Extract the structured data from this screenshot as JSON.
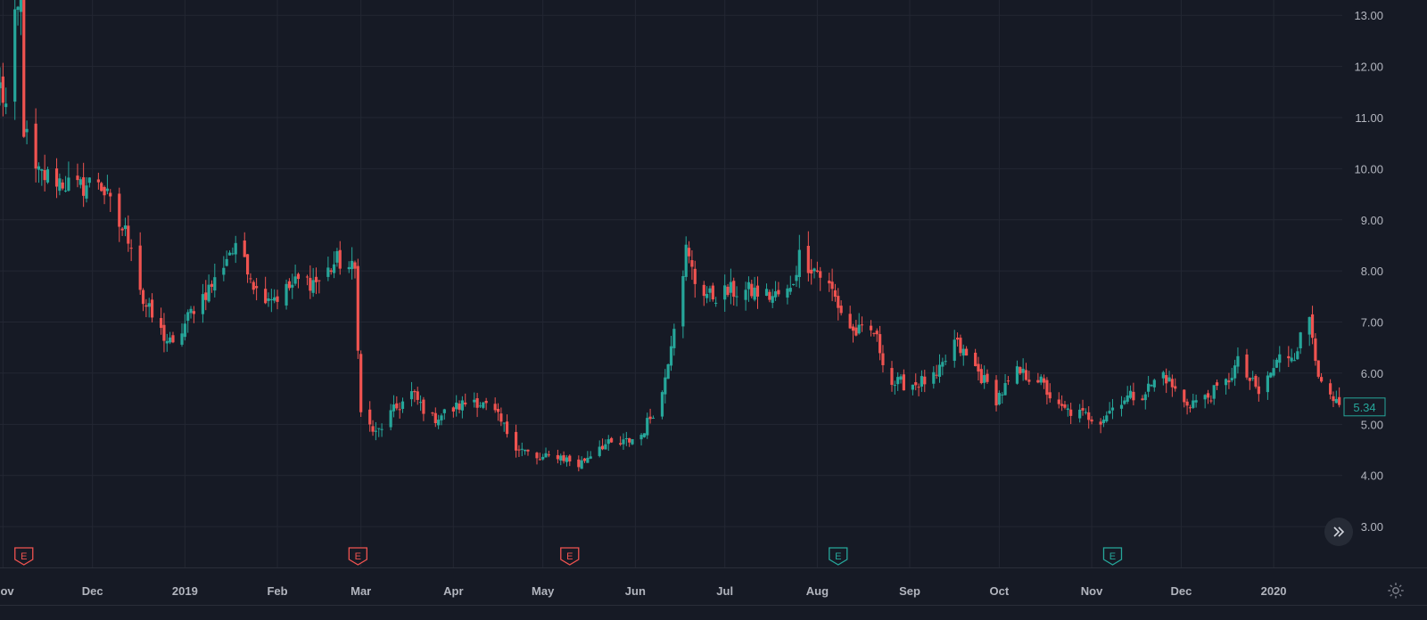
{
  "colors": {
    "background": "#161a25",
    "grid": "#232733",
    "up": "#26a69a",
    "down": "#ef5350",
    "text": "#b2b5be",
    "axis_line": "#2a2e39"
  },
  "chart_data": {
    "type": "candlestick",
    "title": "",
    "y_ticks": [
      "13.00",
      "12.00",
      "11.00",
      "10.00",
      "9.00",
      "8.00",
      "7.00",
      "6.00",
      "5.00",
      "4.00",
      "3.00"
    ],
    "ylim": [
      2.2,
      13.3
    ],
    "x_ticks": [
      "Nov",
      "Dec",
      "2019",
      "Feb",
      "Mar",
      "Apr",
      "May",
      "Jun",
      "Jul",
      "Aug",
      "Sep",
      "Oct",
      "Nov",
      "Dec",
      "2020"
    ],
    "x_tick_dates": [
      "2018-11-01",
      "2018-12-01",
      "2019-01-01",
      "2019-02-01",
      "2019-03-01",
      "2019-04-01",
      "2019-05-01",
      "2019-06-01",
      "2019-07-01",
      "2019-08-01",
      "2019-09-01",
      "2019-10-01",
      "2019-11-01",
      "2019-12-01",
      "2020-01-01"
    ],
    "xlim": [
      "2018-10-31",
      "2020-01-24"
    ],
    "last_price": "5.34",
    "earnings_markers": [
      {
        "date": "2018-11-08",
        "label": "E",
        "type": "negative"
      },
      {
        "date": "2019-02-28",
        "label": "E",
        "type": "negative"
      },
      {
        "date": "2019-05-10",
        "label": "E",
        "type": "negative"
      },
      {
        "date": "2019-08-08",
        "label": "E",
        "type": "positive"
      },
      {
        "date": "2019-11-08",
        "label": "E",
        "type": "positive"
      }
    ],
    "anchors": [
      [
        "2018-10-31",
        11.6
      ],
      [
        "2018-11-02",
        11.2
      ],
      [
        "2018-11-05",
        12.8
      ],
      [
        "2018-11-07",
        13.3
      ],
      [
        "2018-11-08",
        10.8
      ],
      [
        "2018-11-12",
        9.9
      ],
      [
        "2018-11-19",
        9.8
      ],
      [
        "2018-11-26",
        9.6
      ],
      [
        "2018-12-03",
        9.8
      ],
      [
        "2018-12-10",
        8.9
      ],
      [
        "2018-12-14",
        8.6
      ],
      [
        "2018-12-18",
        7.4
      ],
      [
        "2018-12-24",
        6.8
      ],
      [
        "2018-12-28",
        6.5
      ],
      [
        "2019-01-04",
        7.3
      ],
      [
        "2019-01-11",
        7.8
      ],
      [
        "2019-01-16",
        8.4
      ],
      [
        "2019-01-21",
        8.3
      ],
      [
        "2019-01-25",
        7.6
      ],
      [
        "2019-02-01",
        7.5
      ],
      [
        "2019-02-08",
        7.8
      ],
      [
        "2019-02-15",
        7.8
      ],
      [
        "2019-02-21",
        8.2
      ],
      [
        "2019-02-27",
        8.0
      ],
      [
        "2019-03-01",
        5.2
      ],
      [
        "2019-03-06",
        4.8
      ],
      [
        "2019-03-11",
        5.2
      ],
      [
        "2019-03-18",
        5.6
      ],
      [
        "2019-03-25",
        5.1
      ],
      [
        "2019-04-01",
        5.3
      ],
      [
        "2019-04-08",
        5.5
      ],
      [
        "2019-04-15",
        5.2
      ],
      [
        "2019-04-22",
        4.6
      ],
      [
        "2019-04-29",
        4.3
      ],
      [
        "2019-05-06",
        4.4
      ],
      [
        "2019-05-13",
        4.2
      ],
      [
        "2019-05-20",
        4.6
      ],
      [
        "2019-05-27",
        4.6
      ],
      [
        "2019-06-03",
        4.8
      ],
      [
        "2019-06-10",
        5.6
      ],
      [
        "2019-06-14",
        7.0
      ],
      [
        "2019-06-18",
        8.4
      ],
      [
        "2019-06-21",
        7.8
      ],
      [
        "2019-06-26",
        7.5
      ],
      [
        "2019-07-03",
        7.6
      ],
      [
        "2019-07-10",
        7.6
      ],
      [
        "2019-07-17",
        7.5
      ],
      [
        "2019-07-23",
        7.6
      ],
      [
        "2019-07-26",
        8.3
      ],
      [
        "2019-08-01",
        8.0
      ],
      [
        "2019-08-06",
        7.6
      ],
      [
        "2019-08-09",
        7.2
      ],
      [
        "2019-08-13",
        6.8
      ],
      [
        "2019-08-20",
        6.8
      ],
      [
        "2019-08-26",
        5.8
      ],
      [
        "2019-09-03",
        5.8
      ],
      [
        "2019-09-10",
        5.9
      ],
      [
        "2019-09-16",
        6.6
      ],
      [
        "2019-09-23",
        6.1
      ],
      [
        "2019-09-30",
        5.5
      ],
      [
        "2019-10-07",
        6.0
      ],
      [
        "2019-10-14",
        5.9
      ],
      [
        "2019-10-21",
        5.3
      ],
      [
        "2019-10-28",
        5.2
      ],
      [
        "2019-11-04",
        5.1
      ],
      [
        "2019-11-11",
        5.5
      ],
      [
        "2019-11-18",
        5.6
      ],
      [
        "2019-11-25",
        6.0
      ],
      [
        "2019-12-02",
        5.4
      ],
      [
        "2019-12-09",
        5.5
      ],
      [
        "2019-12-16",
        5.8
      ],
      [
        "2019-12-20",
        6.2
      ],
      [
        "2019-12-27",
        5.6
      ],
      [
        "2020-01-03",
        6.3
      ],
      [
        "2020-01-08",
        6.4
      ],
      [
        "2020-01-13",
        7.1
      ],
      [
        "2020-01-17",
        5.7
      ],
      [
        "2020-01-23",
        5.3
      ]
    ]
  }
}
